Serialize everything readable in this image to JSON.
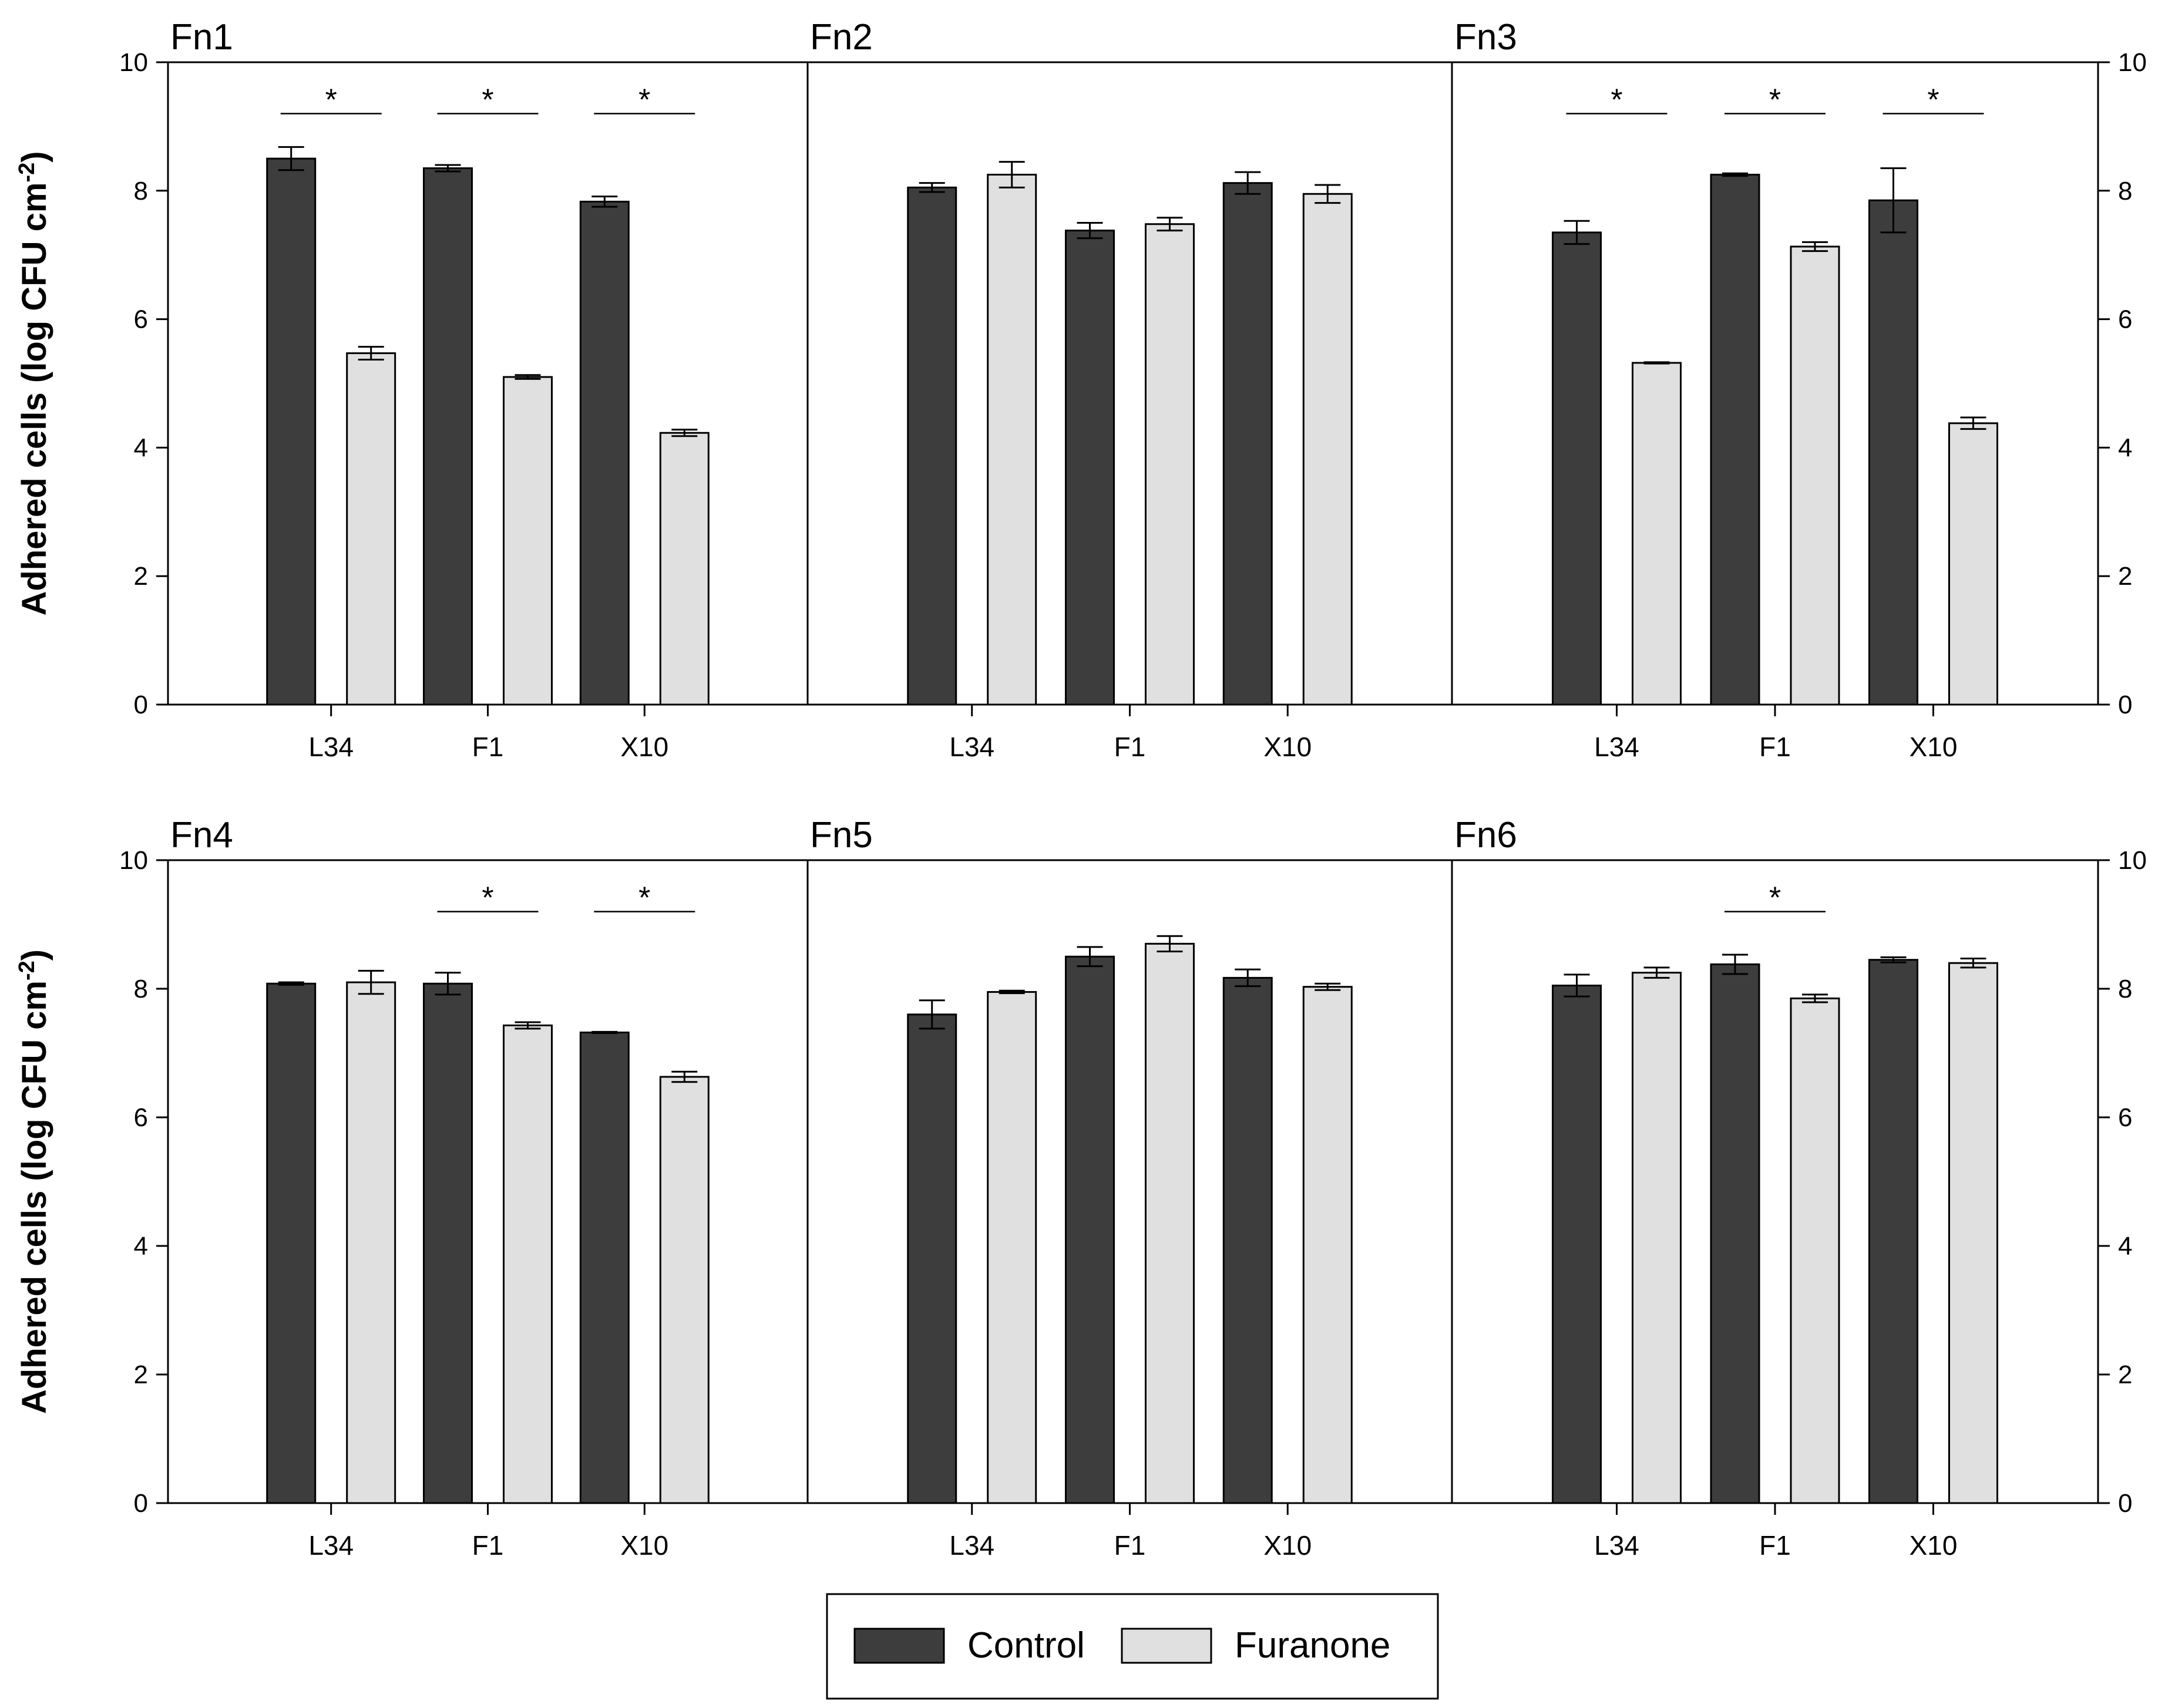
{
  "chart_data": {
    "type": "bar",
    "ylabel": "Adhered cells (log CFU cm",
    "ylabel_superscript": "-2",
    "ylabel_close": ")",
    "ylim": [
      0,
      10
    ],
    "yticks": [
      "0",
      "2",
      "4",
      "6",
      "8",
      "10"
    ],
    "categories": [
      "L34",
      "F1",
      "X10"
    ],
    "legend": [
      {
        "name": "Control",
        "color": "#3d3d3d"
      },
      {
        "name": "Furanone",
        "color": "#e0e0e0"
      }
    ],
    "panels": [
      {
        "title": "Fn1",
        "series": [
          {
            "name": "Control",
            "values": [
              8.5,
              8.35,
              7.83
            ],
            "errors": [
              0.18,
              0.05,
              0.08
            ]
          },
          {
            "name": "Furanone",
            "values": [
              5.47,
              5.1,
              4.23
            ],
            "errors": [
              0.1,
              0.03,
              0.05
            ]
          }
        ],
        "significant": [
          true,
          true,
          true
        ]
      },
      {
        "title": "Fn2",
        "series": [
          {
            "name": "Control",
            "values": [
              8.05,
              7.38,
              8.12
            ],
            "errors": [
              0.07,
              0.12,
              0.17
            ]
          },
          {
            "name": "Furanone",
            "values": [
              8.25,
              7.48,
              7.95
            ],
            "errors": [
              0.2,
              0.1,
              0.14
            ]
          }
        ],
        "significant": [
          false,
          false,
          false
        ]
      },
      {
        "title": "Fn3",
        "series": [
          {
            "name": "Control",
            "values": [
              7.35,
              8.25,
              7.85
            ],
            "errors": [
              0.18,
              0.02,
              0.5
            ]
          },
          {
            "name": "Furanone",
            "values": [
              5.32,
              7.13,
              4.38
            ],
            "errors": [
              0.01,
              0.07,
              0.09
            ]
          }
        ],
        "significant": [
          true,
          true,
          true
        ]
      },
      {
        "title": "Fn4",
        "series": [
          {
            "name": "Control",
            "values": [
              8.08,
              8.08,
              7.32
            ],
            "errors": [
              0.02,
              0.17,
              0.01
            ]
          },
          {
            "name": "Furanone",
            "values": [
              8.1,
              7.43,
              6.63
            ],
            "errors": [
              0.18,
              0.05,
              0.08
            ]
          }
        ],
        "significant": [
          false,
          true,
          true
        ]
      },
      {
        "title": "Fn5",
        "series": [
          {
            "name": "Control",
            "values": [
              7.6,
              8.5,
              8.17
            ],
            "errors": [
              0.22,
              0.15,
              0.13
            ]
          },
          {
            "name": "Furanone",
            "values": [
              7.95,
              8.7,
              8.03
            ],
            "errors": [
              0.02,
              0.12,
              0.05
            ]
          }
        ],
        "significant": [
          false,
          false,
          false
        ]
      },
      {
        "title": "Fn6",
        "series": [
          {
            "name": "Control",
            "values": [
              8.05,
              8.38,
              8.45
            ],
            "errors": [
              0.17,
              0.15,
              0.04
            ]
          },
          {
            "name": "Furanone",
            "values": [
              8.25,
              7.85,
              8.4
            ],
            "errors": [
              0.08,
              0.06,
              0.07
            ]
          }
        ],
        "significant": [
          false,
          true,
          false
        ]
      }
    ],
    "significance_marker": "*"
  }
}
